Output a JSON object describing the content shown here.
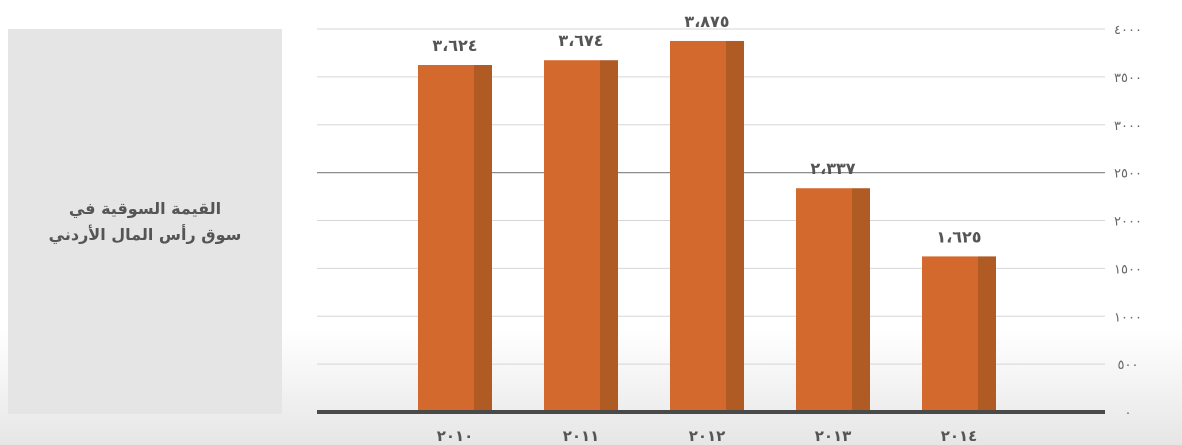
{
  "title_lines": [
    "القيمة السوقية في",
    "سوق رأس المال الأردني"
  ],
  "colors": {
    "bar_front": "#d4692e",
    "bar_side": "#b05a24",
    "baseline": "#4a4a4a",
    "grid": "#d6d6d6",
    "mid_grid": "#8c8c8c",
    "label": "#555555",
    "tick": "#666666"
  },
  "chart_data": {
    "type": "bar",
    "categories": [
      "2010",
      "2011",
      "2012",
      "2013",
      "2014"
    ],
    "category_labels": [
      "٢٠١٠",
      "٢٠١١",
      "٢٠١٢",
      "٢٠١٣",
      "٢٠١٤"
    ],
    "values": [
      3624,
      3674,
      3875,
      2337,
      1625
    ],
    "data_labels": [
      "٣،٦٢٤",
      "٣،٦٧٤",
      "٣،٨٧٥",
      "٢،٣٣٧",
      "١،٦٢٥"
    ],
    "ylim": [
      0,
      4000
    ],
    "yticks": [
      0,
      500,
      1000,
      1500,
      2000,
      2500,
      3000,
      3500,
      4000
    ],
    "ytick_labels": [
      "٠",
      "٥٠٠",
      "١٠٠٠",
      "١٥٠٠",
      "٢٠٠٠",
      "٢٥٠٠",
      "٣٠٠٠",
      "٣٥٠٠",
      "٤٠٠٠"
    ],
    "y_axis_side": "right",
    "grid": true
  }
}
